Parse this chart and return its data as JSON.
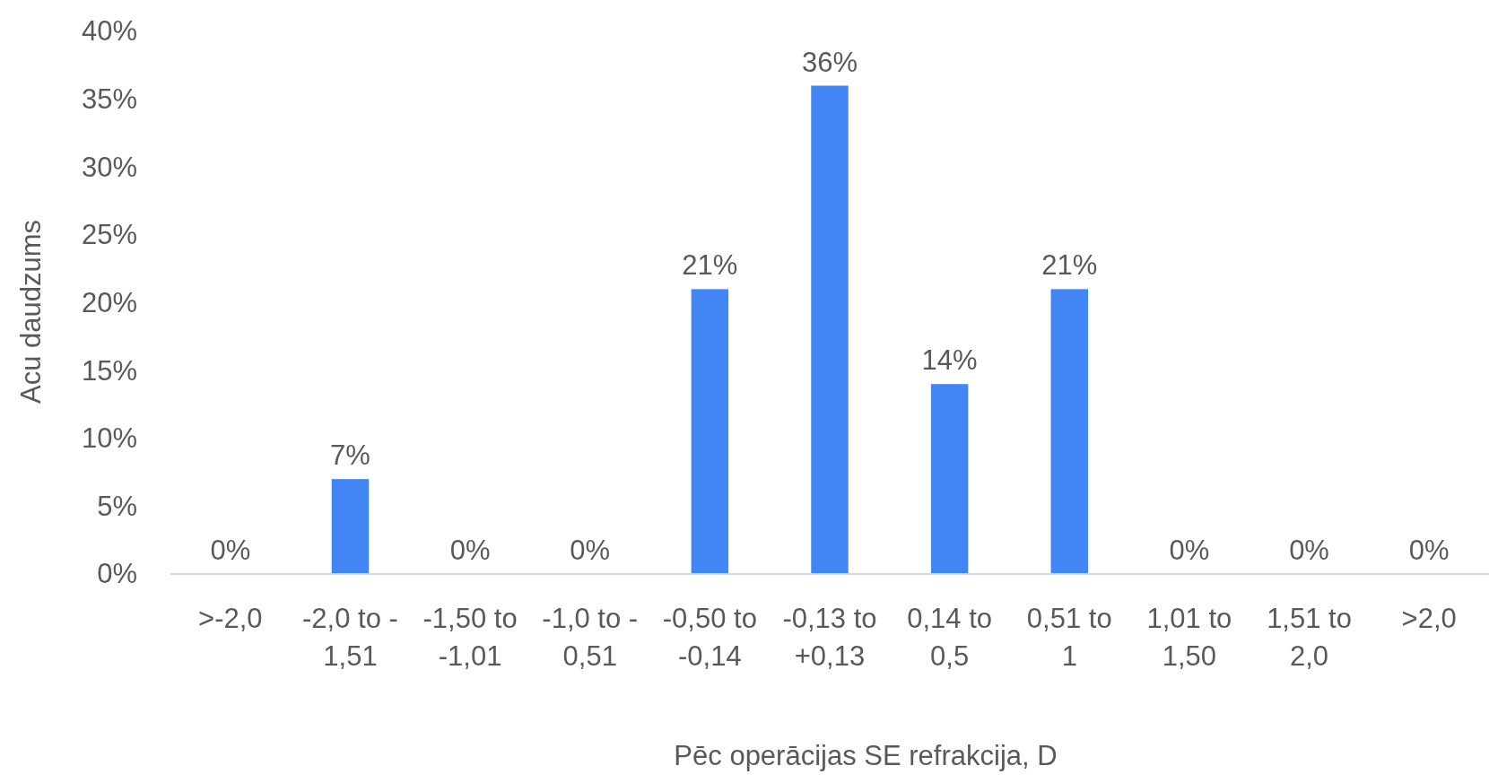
{
  "chart_data": {
    "type": "bar",
    "xlabel": "Pēc operācijas SE refrakcija, D",
    "ylabel": "Acu daudzums",
    "categories": [
      ">-2,0",
      "-2,0 to -1,51",
      "-1,50 to -1,01",
      "-1,0 to -0,51",
      "-0,50 to -0,14",
      "-0,13 to +0,13",
      "0,14 to 0,5",
      "0,51 to 1",
      "1,01 to 1,50",
      "1,51 to 2,0",
      ">2,0"
    ],
    "values": [
      0,
      7,
      0,
      0,
      21,
      36,
      14,
      21,
      0,
      0,
      0
    ],
    "value_labels": [
      "0%",
      "7%",
      "0%",
      "0%",
      "21%",
      "36%",
      "14%",
      "21%",
      "0%",
      "0%",
      "0%"
    ],
    "color": "#4285f4",
    "ylim": [
      0,
      40
    ],
    "yticks": [
      {
        "value": 0,
        "label": "0%"
      },
      {
        "value": 5,
        "label": "5%"
      },
      {
        "value": 10,
        "label": "10%"
      },
      {
        "value": 15,
        "label": "15%"
      },
      {
        "value": 20,
        "label": "20%"
      },
      {
        "value": 25,
        "label": "25%"
      },
      {
        "value": 30,
        "label": "30%"
      },
      {
        "value": 35,
        "label": "35%"
      },
      {
        "value": 40,
        "label": "40%"
      }
    ],
    "grid": false
  }
}
